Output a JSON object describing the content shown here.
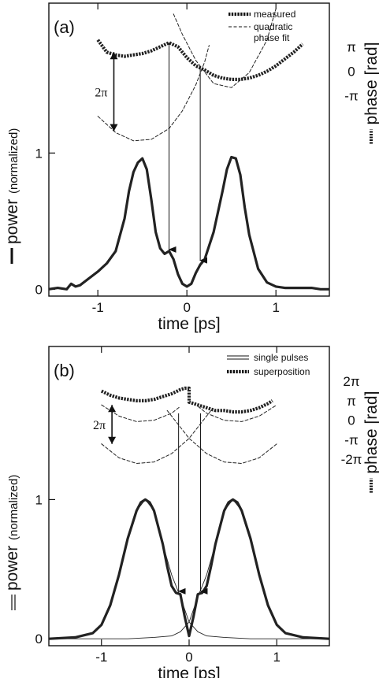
{
  "figure": {
    "colors": {
      "line": "#222222",
      "axis": "#111111",
      "background": "#ffffff"
    }
  },
  "chart_data": [
    {
      "type": "line",
      "panel_label": "(a)",
      "xlabel": "time [ps]",
      "ylabel_main": "power",
      "ylabel_sub": "(normalized)",
      "y2label": "phase [rad]",
      "xlim": [
        -1.55,
        1.6
      ],
      "ylim": [
        -0.05,
        2.1
      ],
      "xticks": [
        {
          "v": -1,
          "label": "-1"
        },
        {
          "v": 0,
          "label": "0"
        },
        {
          "v": 1,
          "label": "1"
        }
      ],
      "yticks": [
        {
          "v": 0,
          "label": "0"
        },
        {
          "v": 1,
          "label": "1"
        }
      ],
      "phase_ticks": [
        {
          "y": 1.42,
          "label": "-π"
        },
        {
          "y": 1.6,
          "label": "0"
        },
        {
          "y": 1.78,
          "label": "π"
        }
      ],
      "legend": [
        "measured",
        "quadratic",
        "phase fit"
      ],
      "annotation": "2π",
      "series": [
        {
          "name": "measured power",
          "style": "thick",
          "x": [
            -1.55,
            -1.45,
            -1.35,
            -1.3,
            -1.25,
            -1.2,
            -1.1,
            -1.0,
            -0.9,
            -0.8,
            -0.7,
            -0.65,
            -0.6,
            -0.55,
            -0.5,
            -0.45,
            -0.4,
            -0.35,
            -0.3,
            -0.25,
            -0.2,
            -0.15,
            -0.1,
            -0.05,
            0.0,
            0.05,
            0.1,
            0.15,
            0.2,
            0.3,
            0.4,
            0.45,
            0.5,
            0.55,
            0.6,
            0.65,
            0.7,
            0.8,
            0.9,
            1.0,
            1.1,
            1.2,
            1.3,
            1.4,
            1.5,
            1.6
          ],
          "y": [
            0.0,
            0.01,
            0.0,
            0.04,
            0.02,
            0.03,
            0.08,
            0.13,
            0.19,
            0.28,
            0.52,
            0.72,
            0.86,
            0.93,
            0.96,
            0.88,
            0.66,
            0.42,
            0.3,
            0.26,
            0.28,
            0.22,
            0.11,
            0.04,
            0.02,
            0.04,
            0.12,
            0.18,
            0.22,
            0.42,
            0.72,
            0.88,
            0.97,
            0.96,
            0.84,
            0.6,
            0.4,
            0.15,
            0.05,
            0.02,
            0.01,
            0.01,
            0.01,
            0.01,
            0.0,
            0.0
          ]
        },
        {
          "name": "measured phase",
          "style": "dotted-thick",
          "x": [
            -1.0,
            -0.9,
            -0.8,
            -0.7,
            -0.6,
            -0.5,
            -0.4,
            -0.3,
            -0.2,
            -0.1,
            0.0,
            0.1,
            0.2,
            0.3,
            0.4,
            0.5,
            0.6,
            0.7,
            0.8,
            0.9,
            1.0,
            1.1,
            1.2,
            1.3
          ],
          "y": [
            1.83,
            1.74,
            1.72,
            1.71,
            1.72,
            1.73,
            1.75,
            1.78,
            1.81,
            1.78,
            1.7,
            1.64,
            1.61,
            1.57,
            1.55,
            1.54,
            1.54,
            1.55,
            1.57,
            1.6,
            1.64,
            1.69,
            1.74,
            1.8
          ]
        },
        {
          "name": "quadratic phase fit",
          "style": "dashed",
          "x": [
            -1.0,
            -0.8,
            -0.6,
            -0.4,
            -0.2,
            -0.05,
            0.1,
            0.2,
            0.25
          ],
          "y": [
            1.27,
            1.15,
            1.09,
            1.1,
            1.18,
            1.31,
            1.5,
            1.67,
            1.79
          ]
        },
        {
          "name": "quadratic phase fit",
          "style": "dashed",
          "x": [
            -0.15,
            -0.05,
            0.1,
            0.3,
            0.5,
            0.7,
            0.9,
            1.0
          ],
          "y": [
            2.02,
            1.87,
            1.68,
            1.51,
            1.48,
            1.59,
            1.83,
            2.06
          ]
        }
      ],
      "arrows": [
        {
          "from": [
            -0.2,
            1.81
          ],
          "to": [
            -0.2,
            0.28
          ]
        },
        {
          "from": [
            0.15,
            1.64
          ],
          "to": [
            0.15,
            0.2
          ]
        }
      ],
      "bracket": {
        "x": -0.82,
        "y_top": 1.74,
        "y_bottom": 1.16
      }
    },
    {
      "type": "line",
      "panel_label": "(b)",
      "xlabel": "time [ps]",
      "ylabel_main": "power",
      "ylabel_sub": "(normalized)",
      "y2label": "phase [rad]",
      "xlim": [
        -1.6,
        1.6
      ],
      "ylim": [
        -0.05,
        2.1
      ],
      "xticks": [
        {
          "v": -1,
          "label": "-1"
        },
        {
          "v": 0,
          "label": "0"
        },
        {
          "v": 1,
          "label": "1"
        }
      ],
      "yticks": [
        {
          "v": 0,
          "label": "0"
        },
        {
          "v": 1,
          "label": "1"
        }
      ],
      "phase_ticks": [
        {
          "y": 1.85,
          "label": "2π"
        },
        {
          "y": 1.71,
          "label": "π"
        },
        {
          "y": 1.57,
          "label": "0"
        },
        {
          "y": 1.43,
          "label": "-π"
        },
        {
          "y": 1.29,
          "label": "-2π"
        }
      ],
      "legend": [
        "single pulses",
        "superposition"
      ],
      "annotation": "2π",
      "series": [
        {
          "name": "superposition power",
          "style": "thick",
          "x": [
            -1.6,
            -1.3,
            -1.1,
            -1.0,
            -0.9,
            -0.8,
            -0.7,
            -0.6,
            -0.55,
            -0.5,
            -0.45,
            -0.4,
            -0.3,
            -0.25,
            -0.2,
            -0.15,
            -0.1,
            -0.05,
            0.0,
            0.05,
            0.1,
            0.15,
            0.2,
            0.25,
            0.3,
            0.4,
            0.45,
            0.5,
            0.55,
            0.6,
            0.7,
            0.8,
            0.9,
            1.0,
            1.1,
            1.3,
            1.6
          ],
          "y": [
            0.0,
            0.01,
            0.04,
            0.1,
            0.24,
            0.46,
            0.72,
            0.92,
            0.98,
            1.0,
            0.98,
            0.92,
            0.68,
            0.52,
            0.38,
            0.33,
            0.32,
            0.16,
            0.02,
            0.16,
            0.32,
            0.33,
            0.38,
            0.52,
            0.68,
            0.92,
            0.98,
            1.0,
            0.98,
            0.92,
            0.72,
            0.46,
            0.24,
            0.1,
            0.04,
            0.01,
            0.0
          ]
        },
        {
          "name": "single pulse 1",
          "style": "thin",
          "x": [
            -1.6,
            -1.3,
            -1.1,
            -1.0,
            -0.9,
            -0.8,
            -0.7,
            -0.6,
            -0.5,
            -0.4,
            -0.3,
            -0.2,
            -0.1,
            0.0,
            0.1,
            0.2,
            0.4,
            0.7,
            1.0,
            1.6
          ],
          "y": [
            0.0,
            0.01,
            0.04,
            0.1,
            0.24,
            0.46,
            0.72,
            0.92,
            1.0,
            0.92,
            0.68,
            0.46,
            0.3,
            0.12,
            0.05,
            0.02,
            0.01,
            0.0,
            0.0,
            0.0
          ]
        },
        {
          "name": "single pulse 2",
          "style": "thin",
          "x": [
            -1.6,
            -1.0,
            -0.7,
            -0.4,
            -0.2,
            -0.1,
            0.0,
            0.1,
            0.2,
            0.3,
            0.4,
            0.5,
            0.6,
            0.7,
            0.8,
            0.9,
            1.0,
            1.1,
            1.3,
            1.6
          ],
          "y": [
            0.0,
            0.0,
            0.0,
            0.01,
            0.02,
            0.05,
            0.12,
            0.3,
            0.46,
            0.68,
            0.92,
            1.0,
            0.92,
            0.72,
            0.46,
            0.24,
            0.1,
            0.04,
            0.01,
            0.0
          ]
        },
        {
          "name": "superposition phase",
          "style": "dotted-thick",
          "x": [
            -1.0,
            -0.9,
            -0.8,
            -0.7,
            -0.6,
            -0.5,
            -0.4,
            -0.3,
            -0.2,
            -0.1,
            -0.05,
            0.0,
            0.0,
            0.1,
            0.2,
            0.3,
            0.4,
            0.5,
            0.6,
            0.7,
            0.8,
            0.9,
            0.95
          ],
          "y": [
            1.78,
            1.75,
            1.73,
            1.72,
            1.71,
            1.71,
            1.72,
            1.74,
            1.76,
            1.79,
            1.8,
            1.8,
            1.7,
            1.68,
            1.66,
            1.64,
            1.64,
            1.63,
            1.63,
            1.64,
            1.66,
            1.69,
            1.71
          ]
        },
        {
          "name": "single pulse phase 1",
          "style": "dashed",
          "x": [
            -1.0,
            -0.8,
            -0.6,
            -0.4,
            -0.2,
            -0.1
          ],
          "y": [
            1.68,
            1.6,
            1.56,
            1.57,
            1.62,
            1.67
          ]
        },
        {
          "name": "single pulse phase 1 lower",
          "style": "dashed",
          "x": [
            -1.0,
            -0.8,
            -0.6,
            -0.4,
            -0.2,
            0.0,
            0.1,
            0.25
          ],
          "y": [
            1.4,
            1.3,
            1.26,
            1.27,
            1.33,
            1.44,
            1.52,
            1.64
          ]
        },
        {
          "name": "single pulse phase 2",
          "style": "dashed",
          "x": [
            0.1,
            0.2,
            0.4,
            0.6,
            0.8,
            1.0
          ],
          "y": [
            1.67,
            1.62,
            1.57,
            1.56,
            1.6,
            1.68
          ]
        },
        {
          "name": "single pulse phase 2 lower",
          "style": "dashed",
          "x": [
            -0.25,
            -0.1,
            0.0,
            0.2,
            0.4,
            0.6,
            0.8,
            1.0
          ],
          "y": [
            1.64,
            1.52,
            1.44,
            1.33,
            1.27,
            1.26,
            1.3,
            1.4
          ]
        }
      ],
      "arrows": [
        {
          "from": [
            -0.12,
            1.62
          ],
          "to": [
            -0.12,
            0.33
          ]
        },
        {
          "from": [
            0.13,
            1.62
          ],
          "to": [
            0.13,
            0.33
          ]
        }
      ],
      "bracket": {
        "x": -0.88,
        "y_top": 1.68,
        "y_bottom": 1.4
      }
    }
  ]
}
